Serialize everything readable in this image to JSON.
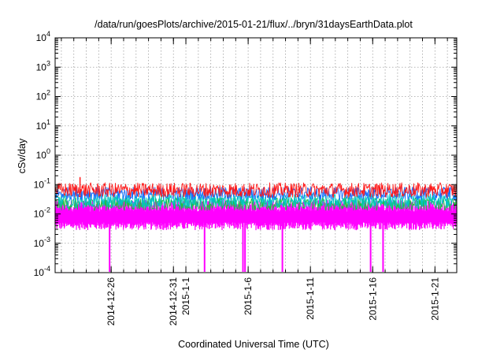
{
  "chart_data": {
    "type": "line",
    "title": "/data/run/goesPlots/archive/2015-01-21/flux/../bryn/31daysEarthData.plot",
    "xlabel": "Coordinated Universal Time (UTC)",
    "ylabel": "cSv/day",
    "yscale": "log",
    "ylim": [
      0.0001,
      10000
    ],
    "xlim": [
      "2014-12-21T12:00",
      "2015-01-22T18:00"
    ],
    "y_ticks": [
      {
        "base": "10",
        "exp": "-4",
        "value": 0.0001
      },
      {
        "base": "10",
        "exp": "-3",
        "value": 0.001
      },
      {
        "base": "10",
        "exp": "-2",
        "value": 0.01
      },
      {
        "base": "10",
        "exp": "-1",
        "value": 0.1
      },
      {
        "base": "10",
        "exp": "0",
        "value": 1
      },
      {
        "base": "10",
        "exp": "1",
        "value": 10
      },
      {
        "base": "10",
        "exp": "2",
        "value": 100
      },
      {
        "base": "10",
        "exp": "3",
        "value": 1000
      },
      {
        "base": "10",
        "exp": "4",
        "value": 10000
      }
    ],
    "x_ticks": [
      {
        "label": "2014-12-26",
        "date": "2014-12-26T00:00"
      },
      {
        "label": "2014-12-31",
        "date": "2014-12-31T00:00"
      },
      {
        "label": "2015-1-1",
        "date": "2015-01-01T00:00"
      },
      {
        "label": "2015-1-6",
        "date": "2015-01-06T00:00"
      },
      {
        "label": "2015-1-11",
        "date": "2015-01-11T00:00"
      },
      {
        "label": "2015-1-16",
        "date": "2015-01-16T00:00"
      },
      {
        "label": "2015-1-21",
        "date": "2015-01-21T00:00"
      }
    ],
    "grid": true,
    "series": [
      {
        "color": "#ff1a1a",
        "base": 0.065,
        "spread": 0.25
      },
      {
        "color": "#1a6dff",
        "base": 0.05,
        "spread": 0.22
      },
      {
        "color": "#00c4c4",
        "base": 0.028,
        "spread": 0.25
      },
      {
        "color": "#1fbf3f",
        "base": 0.022,
        "spread": 0.22
      },
      {
        "color": "#ff00ff",
        "base_low": 0.004,
        "base_high": 0.015
      }
    ],
    "spikes": [
      {
        "date": "2014-12-23T12:00",
        "value": 0.18,
        "color": "#ff1a1a"
      }
    ],
    "dips": [
      {
        "date": "2014-12-25T21:00",
        "value": 0.0001
      },
      {
        "date": "2015-01-02T12:00",
        "value": 0.0001
      },
      {
        "date": "2015-01-05T14:00",
        "value": 0.0001
      },
      {
        "date": "2015-01-05T18:00",
        "value": 0.0001
      },
      {
        "date": "2015-01-08T18:00",
        "value": 0.0001
      },
      {
        "date": "2015-01-15T20:00",
        "value": 0.0001
      },
      {
        "date": "2015-01-16T20:00",
        "value": 0.0001
      }
    ]
  }
}
